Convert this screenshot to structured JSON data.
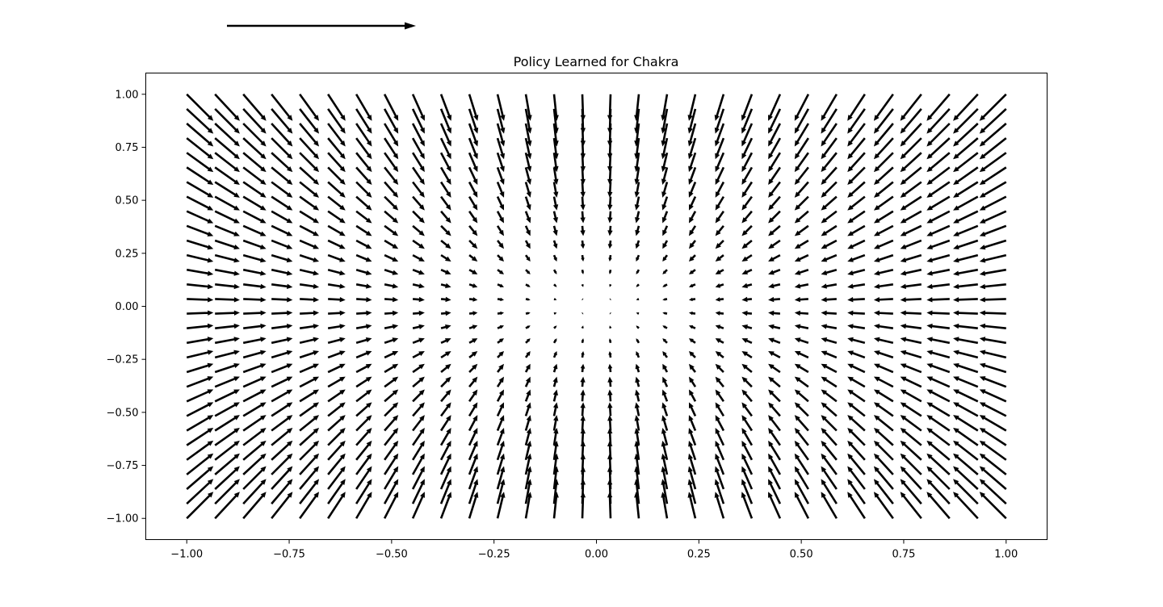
{
  "chart_data": {
    "type": "quiver",
    "title": "Policy Learned for Chakra",
    "xlabel": "",
    "ylabel": "",
    "xlim": [
      -1.1,
      1.1
    ],
    "ylim": [
      -1.1,
      1.1
    ],
    "x_ticks": [
      {
        "value": -1.0,
        "label": "−1.00"
      },
      {
        "value": -0.75,
        "label": "−0.75"
      },
      {
        "value": -0.5,
        "label": "−0.50"
      },
      {
        "value": -0.25,
        "label": "−0.25"
      },
      {
        "value": 0.0,
        "label": "0.00"
      },
      {
        "value": 0.25,
        "label": "0.25"
      },
      {
        "value": 0.5,
        "label": "0.50"
      },
      {
        "value": 0.75,
        "label": "0.75"
      },
      {
        "value": 1.0,
        "label": "1.00"
      }
    ],
    "y_ticks": [
      {
        "value": 1.0,
        "label": "1.00"
      },
      {
        "value": 0.75,
        "label": "0.75"
      },
      {
        "value": 0.5,
        "label": "0.50"
      },
      {
        "value": 0.25,
        "label": "0.25"
      },
      {
        "value": 0.0,
        "label": "0.00"
      },
      {
        "value": -0.25,
        "label": "−0.25"
      },
      {
        "value": -0.5,
        "label": "−0.50"
      },
      {
        "value": -0.75,
        "label": "−0.75"
      },
      {
        "value": -1.0,
        "label": "−1.00"
      }
    ],
    "grid": {
      "x_range": [
        -1.0,
        1.0
      ],
      "y_range": [
        -1.0,
        1.0
      ],
      "nx": 30,
      "ny": 30
    },
    "vector_field": "u = -x, v = -y (arrows point toward the origin)",
    "grid_lines": false,
    "legend": "none",
    "arrow_color": "#000000"
  }
}
